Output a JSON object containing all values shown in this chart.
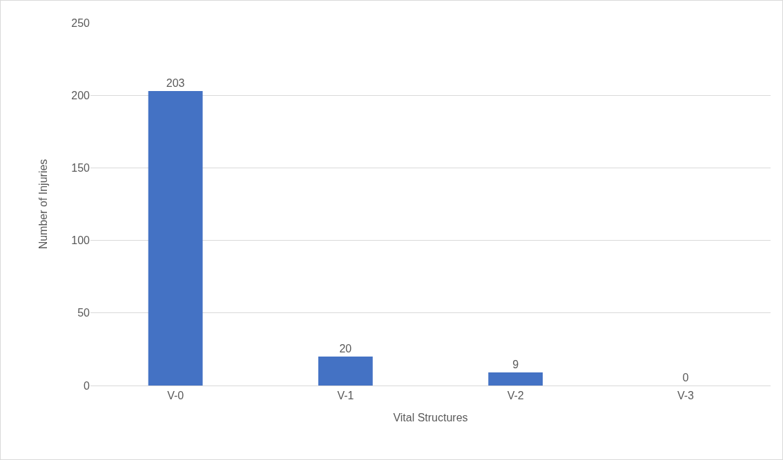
{
  "chart_data": {
    "type": "bar",
    "xlabel": "Vital Structures",
    "ylabel": "Number of Injuries",
    "categories": [
      "V-0",
      "V-1",
      "V-2",
      "V-3"
    ],
    "values": [
      203,
      20,
      9,
      0
    ],
    "color": "#4472c4",
    "ylim": [
      0,
      250
    ],
    "yticks": [
      0,
      50,
      100,
      150,
      200,
      250
    ],
    "grid": "y",
    "data_labels": true
  }
}
